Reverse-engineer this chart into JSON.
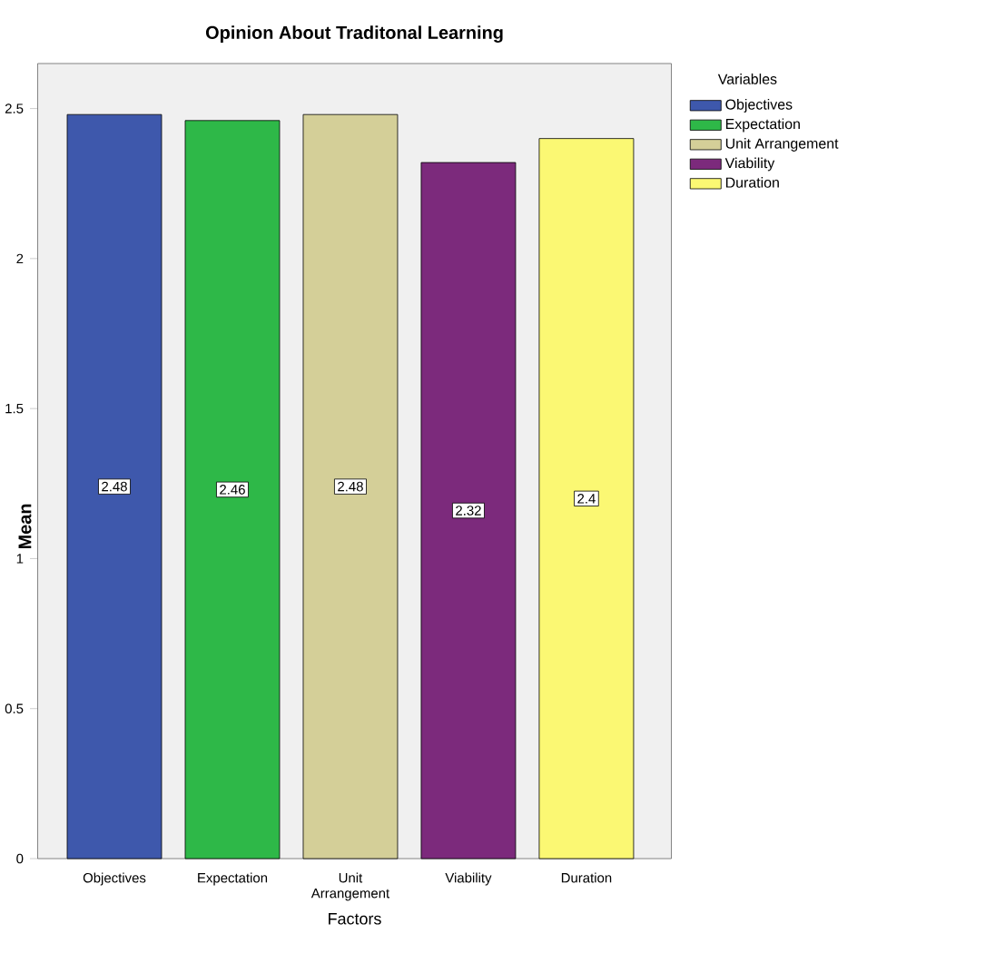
{
  "chart_data": {
    "type": "bar",
    "title": "Opinion About Traditonal Learning",
    "xlabel": "Factors",
    "ylabel": "Mean",
    "legend_title": "Variables",
    "categories": [
      "Objectives",
      "Expectation",
      "Unit Arrangement",
      "Viability",
      "Duration"
    ],
    "series": [
      {
        "name": "Objectives",
        "color": "#3e58ac",
        "values": [
          2.48,
          null,
          null,
          null,
          null
        ]
      },
      {
        "name": "Expectation",
        "color": "#2eb848",
        "values": [
          null,
          2.46,
          null,
          null,
          null
        ]
      },
      {
        "name": "Unit Arrangement",
        "color": "#d4cf98",
        "values": [
          null,
          null,
          2.48,
          null,
          null
        ]
      },
      {
        "name": "Viability",
        "color": "#7c2a7c",
        "values": [
          null,
          null,
          null,
          2.32,
          null
        ]
      },
      {
        "name": "Duration",
        "color": "#fbf873",
        "values": [
          null,
          null,
          null,
          null,
          2.4
        ]
      }
    ],
    "ylim": [
      0,
      2.65
    ],
    "yticks": [
      0,
      0.5,
      1,
      1.5,
      2,
      2.5
    ],
    "data_labels": true,
    "legend": "right",
    "grid": false
  }
}
